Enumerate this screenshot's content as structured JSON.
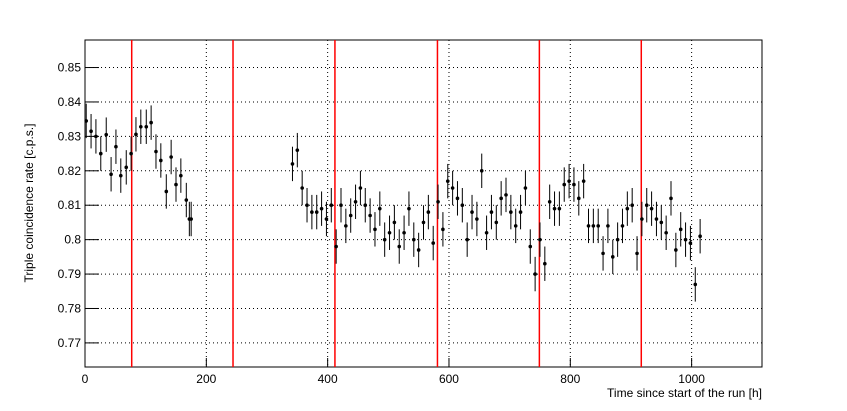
{
  "chart_data": {
    "type": "scatter",
    "x_label": "Time since start of the run [h]",
    "y_label": "Triple coincidence rate [c.p.s.]",
    "xlim": [
      0,
      1116
    ],
    "ylim": [
      0.763,
      0.858
    ],
    "xticks": [
      0,
      200,
      400,
      600,
      800,
      1000
    ],
    "yticks": [
      0.77,
      0.78,
      0.79,
      0.8,
      0.81,
      0.82,
      0.83,
      0.84,
      0.85
    ],
    "grid": true,
    "color": "#000000",
    "error": 0.005,
    "vertical_lines": [
      77,
      244,
      412,
      581,
      749,
      917
    ],
    "vertical_line_color": "#ff0000",
    "x": [
      2,
      10,
      18,
      26,
      35,
      43,
      51,
      59,
      68,
      76,
      84,
      92,
      101,
      109,
      117,
      125,
      134,
      142,
      150,
      158,
      167,
      175,
      172,
      342,
      350,
      358,
      366,
      374,
      382,
      390,
      398,
      406,
      414,
      422,
      430,
      438,
      446,
      454,
      462,
      470,
      478,
      486,
      494,
      502,
      510,
      518,
      526,
      534,
      542,
      550,
      558,
      566,
      574,
      582,
      590,
      598,
      606,
      614,
      622,
      630,
      638,
      646,
      654,
      662,
      670,
      678,
      686,
      694,
      702,
      710,
      718,
      726,
      734,
      742,
      750,
      758,
      766,
      774,
      782,
      790,
      798,
      806,
      814,
      822,
      830,
      838,
      846,
      854,
      862,
      870,
      878,
      886,
      894,
      902,
      910,
      918,
      926,
      934,
      942,
      950,
      958,
      966,
      974,
      982,
      990,
      998,
      1006,
      1014
    ],
    "values": [
      0.8345,
      0.8315,
      0.83,
      0.825,
      0.8305,
      0.819,
      0.827,
      0.8186,
      0.821,
      0.825,
      0.8306,
      0.8328,
      0.8328,
      0.834,
      0.8256,
      0.823,
      0.814,
      0.824,
      0.816,
      0.8186,
      0.8115,
      0.806,
      0.806,
      0.822,
      0.826,
      0.815,
      0.81,
      0.808,
      0.808,
      0.809,
      0.806,
      0.81,
      0.798,
      0.81,
      0.804,
      0.807,
      0.811,
      0.815,
      0.81,
      0.807,
      0.803,
      0.809,
      0.8,
      0.802,
      0.805,
      0.798,
      0.802,
      0.809,
      0.8,
      0.797,
      0.805,
      0.808,
      0.799,
      0.811,
      0.803,
      0.817,
      0.815,
      0.812,
      0.81,
      0.8,
      0.808,
      0.806,
      0.82,
      0.802,
      0.808,
      0.805,
      0.812,
      0.813,
      0.808,
      0.804,
      0.808,
      0.815,
      0.798,
      0.79,
      0.8,
      0.793,
      0.811,
      0.809,
      0.809,
      0.816,
      0.817,
      0.816,
      0.812,
      0.817,
      0.804,
      0.804,
      0.804,
      0.796,
      0.804,
      0.795,
      0.8,
      0.804,
      0.809,
      0.81,
      0.796,
      0.806,
      0.81,
      0.809,
      0.806,
      0.805,
      0.802,
      0.812,
      0.797,
      0.803,
      0.8,
      0.799,
      0.787,
      0.801
    ]
  }
}
